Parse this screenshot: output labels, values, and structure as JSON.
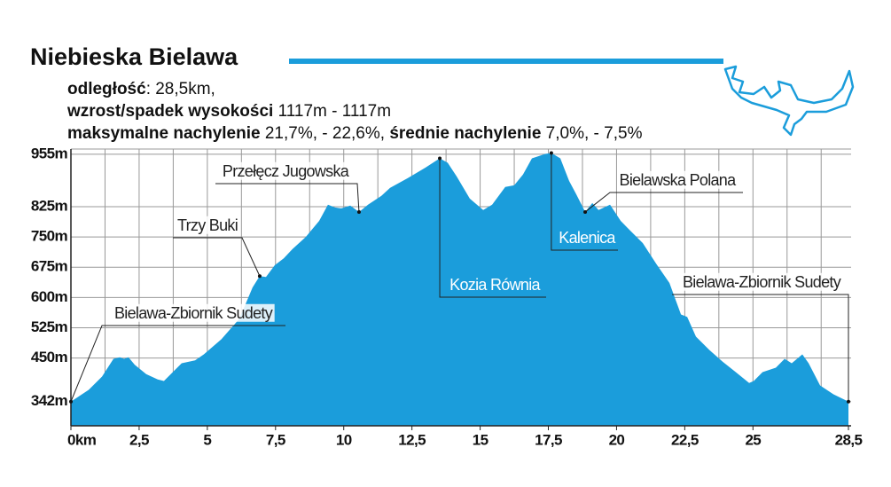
{
  "chart_data": {
    "type": "area",
    "title": "Niebieska Bielawa",
    "info": [
      [
        {
          "text": "odległość",
          "bold": true
        },
        {
          "text": ": 28,5km,",
          "bold": false
        }
      ],
      [
        {
          "text": "wzrost/spadek wysokości",
          "bold": true
        },
        {
          "text": " 1117m - 1117m",
          "bold": false
        }
      ],
      [
        {
          "text": "maksymalne nachylenie",
          "bold": true
        },
        {
          "text": " 21,7%, - 22,6%, ",
          "bold": false
        },
        {
          "text": "średnie nachylenie",
          "bold": true
        },
        {
          "text": " 7,0%, - 7,5%",
          "bold": false
        }
      ]
    ],
    "color": "#1b9ddb",
    "x": [
      0,
      0.65,
      1.14,
      1.56,
      1.79,
      1.95,
      2.11,
      2.34,
      2.76,
      3.18,
      3.41,
      3.57,
      4.06,
      4.55,
      4.87,
      5.52,
      6.17,
      6.66,
      6.92,
      7.15,
      7.47,
      7.8,
      8.12,
      8.61,
      9.1,
      9.42,
      9.68,
      9.91,
      10.24,
      10.56,
      10.89,
      11.38,
      11.7,
      12.35,
      13.0,
      13.52,
      13.81,
      14.14,
      14.62,
      15.11,
      15.44,
      15.92,
      16.25,
      16.57,
      16.9,
      17.39,
      17.61,
      17.94,
      18.26,
      18.52,
      18.85,
      19.11,
      19.34,
      19.76,
      20.15,
      20.47,
      20.96,
      21.45,
      21.94,
      22.36,
      22.59,
      22.91,
      23.4,
      23.89,
      24.37,
      24.86,
      25.03,
      25.35,
      25.84,
      26.16,
      26.42,
      26.81,
      27.04,
      27.46,
      27.95,
      28.5
    ],
    "values": [
      342,
      371,
      404,
      448,
      452,
      448,
      452,
      433,
      410,
      397,
      393,
      404,
      437,
      444,
      459,
      497,
      547,
      625,
      653,
      651,
      680,
      697,
      720,
      750,
      790,
      830,
      823,
      821,
      828,
      812,
      830,
      852,
      872,
      896,
      922,
      945,
      934,
      900,
      845,
      817,
      830,
      874,
      878,
      905,
      945,
      956,
      958,
      945,
      889,
      856,
      812,
      834,
      817,
      830,
      790,
      768,
      735,
      684,
      636,
      558,
      552,
      503,
      470,
      441,
      415,
      388,
      393,
      415,
      426,
      448,
      437,
      459,
      437,
      382,
      360,
      342
    ],
    "xlim": [
      0,
      28.5
    ],
    "ylim": [
      282,
      968
    ],
    "xticks": [
      {
        "value": 0,
        "label": "0km"
      },
      {
        "value": 2.5,
        "label": "2,5"
      },
      5,
      {
        "value": 7.5,
        "label": "7,5"
      },
      10,
      {
        "value": 12.5,
        "label": "12,5"
      },
      15,
      {
        "value": 17.5,
        "label": "17,5"
      },
      20,
      {
        "value": 22.5,
        "label": "22,5"
      },
      25,
      {
        "value": 28.5,
        "label": "28,5"
      }
    ],
    "xgrid": [
      1.25,
      2.5,
      3.75,
      5,
      6.25,
      7.5,
      8.75,
      10,
      11.25,
      12.5,
      13.75,
      15,
      16.25,
      17.5,
      18.75,
      20,
      21.25,
      22.5,
      23.75,
      25,
      26.25,
      27.5
    ],
    "yticks": [
      {
        "value": 342,
        "label": "342m"
      },
      {
        "value": 450,
        "label": "450m"
      },
      {
        "value": 525,
        "label": "525m"
      },
      {
        "value": 600,
        "label": "600m"
      },
      {
        "value": 675,
        "label": "675m"
      },
      {
        "value": 750,
        "label": "750m"
      },
      {
        "value": 825,
        "label": "825m"
      },
      {
        "value": 955,
        "label": "955m"
      }
    ],
    "grid": true,
    "annotations": [
      {
        "text": "Bielawa-Zbiornik Sudety",
        "x": 0,
        "color": "#222222"
      },
      {
        "text": "Trzy Buki",
        "x": 6.92,
        "color": "#222222"
      },
      {
        "text": "Przełęcz Jugowska",
        "x": 10.56,
        "color": "#222222"
      },
      {
        "text": "Kozia Równia",
        "x": 13.52,
        "color": "#ffffff"
      },
      {
        "text": "Kalenica",
        "x": 17.61,
        "color": "#ffffff"
      },
      {
        "text": "Bielawska Polana",
        "x": 18.85,
        "color": "#222222"
      },
      {
        "text": "Bielawa-Zbiornik Sudety",
        "x": 28.5,
        "color": "#222222"
      }
    ]
  }
}
